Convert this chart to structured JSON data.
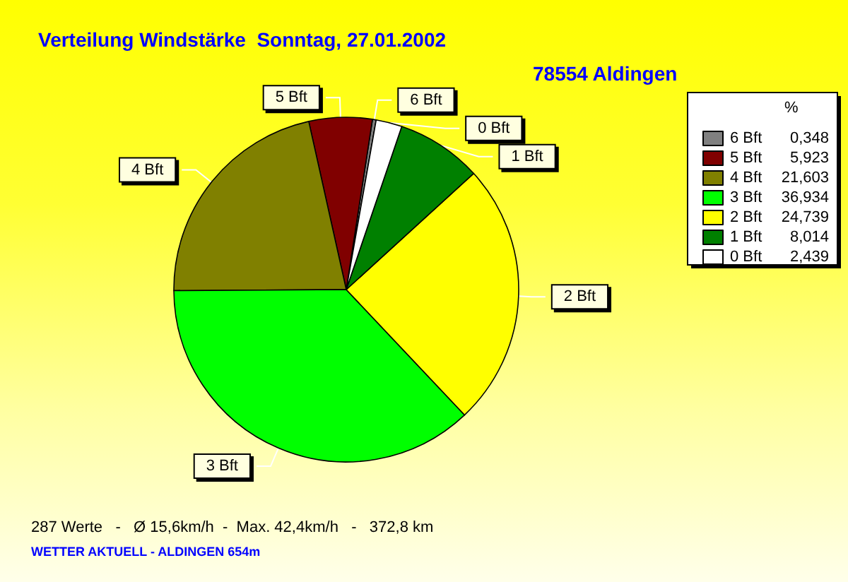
{
  "chart_data": {
    "type": "pie",
    "title": "Verteilung Windstärke  Sonntag, 27.01.2002",
    "subtitle": "78554 Aldingen",
    "legend_title": "%",
    "categories": [
      "6 Bft",
      "5 Bft",
      "4 Bft",
      "3 Bft",
      "2 Bft",
      "1 Bft",
      "0 Bft"
    ],
    "values": [
      0.348,
      5.923,
      21.603,
      36.934,
      24.739,
      8.014,
      2.439
    ],
    "value_labels": [
      "0,348",
      "5,923",
      "21,603",
      "36,934",
      "24,739",
      "8,014",
      "2,439"
    ],
    "colors": [
      "#808080",
      "#800000",
      "#808000",
      "#00ff00",
      "#ffff00",
      "#008000",
      "#ffffff"
    ],
    "legend": "top right",
    "annotations": [
      "287 Werte   -   Ø 15,6km/h  -  Max. 42,4km/h   -   372,8 km",
      "WETTER AKTUELL - ALDINGEN 654m"
    ]
  }
}
